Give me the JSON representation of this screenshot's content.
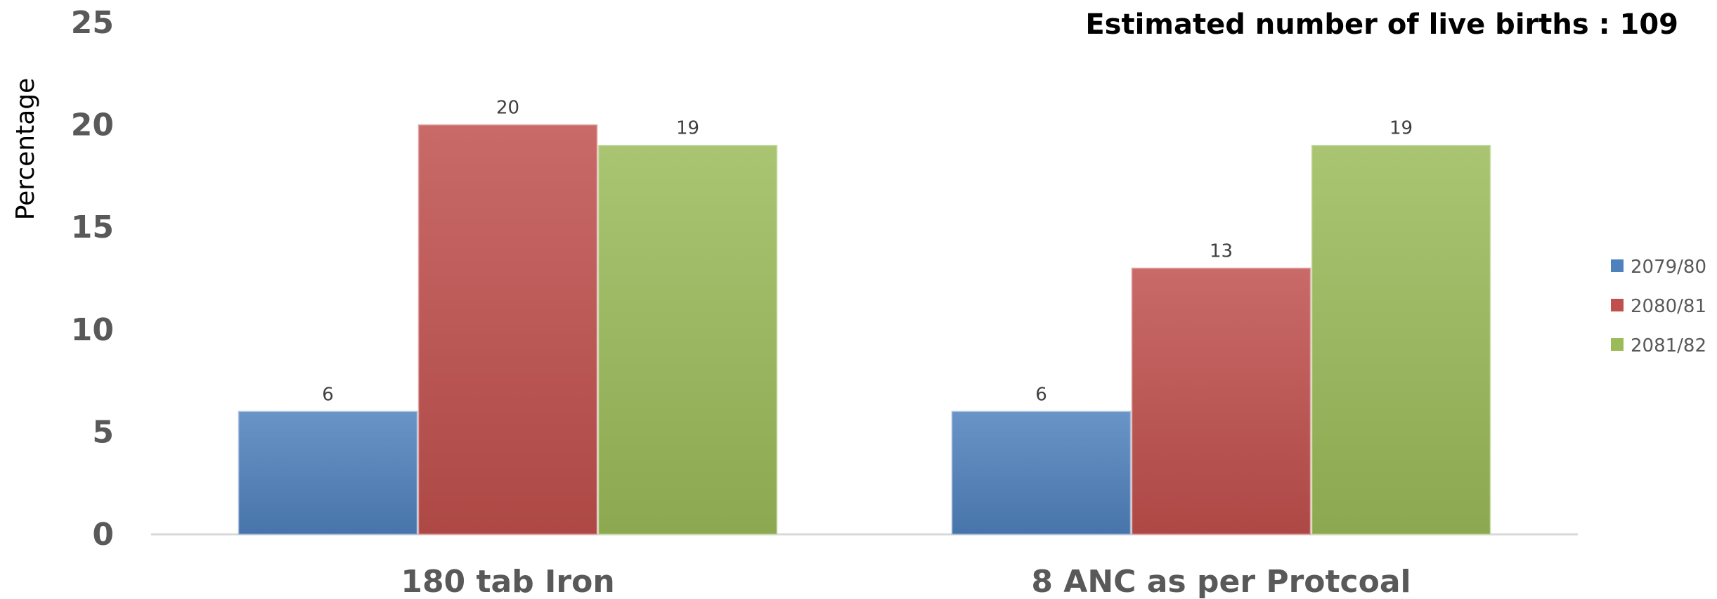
{
  "chart_data": {
    "type": "bar",
    "title": "",
    "annotation": "Estimated number of live births : 109",
    "xlabel": "",
    "ylabel": "Percentage",
    "ylim": [
      0,
      25
    ],
    "yticks": [
      "0",
      "5",
      "10",
      "15",
      "20",
      "25"
    ],
    "categories": [
      "180 tab Iron",
      "8 ANC as per Protcoal"
    ],
    "series": [
      {
        "name": "2079/80",
        "values": [
          6,
          6
        ],
        "color": "#4f81bd"
      },
      {
        "name": "2080/81",
        "values": [
          20,
          13
        ],
        "color": "#c0504d"
      },
      {
        "name": "2081/82",
        "values": [
          19,
          19
        ],
        "color": "#9bbb59"
      }
    ],
    "data_labels": true,
    "grid": false,
    "legend_position": "right"
  }
}
